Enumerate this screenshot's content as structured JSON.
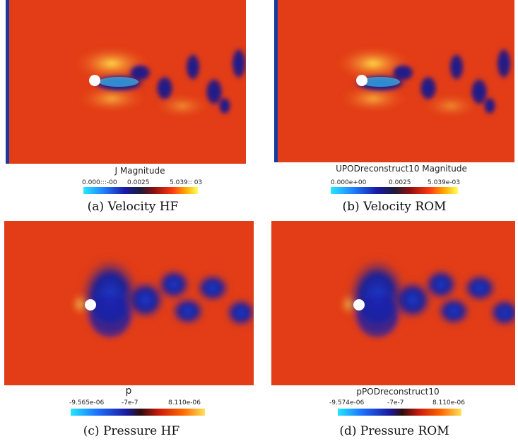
{
  "panels": [
    {
      "id": "a",
      "kind": "velocity",
      "colorbar_title": "J Magnitude",
      "ticks": [
        "0.000:::-00",
        "0.0025",
        "5.039:: 03"
      ],
      "caption": "(a) Velocity HF"
    },
    {
      "id": "b",
      "kind": "velocity",
      "colorbar_title": "UPODreconstruct10 Magnitude",
      "ticks": [
        "0.000e+00",
        "0.0025",
        "5.039e-03"
      ],
      "caption": "(b) Velocity ROM"
    },
    {
      "id": "c",
      "kind": "pressure",
      "colorbar_title": "p",
      "ticks": [
        "-9.565e-06",
        "-7e-7",
        "8.110e-06"
      ],
      "caption": "(c) Pressure HF"
    },
    {
      "id": "d",
      "kind": "pressure",
      "colorbar_title": "pPODreconstruct10",
      "ticks": [
        "-9.574e-06",
        "-7e-7",
        "8.110e-06"
      ],
      "caption": "(d) Pressure ROM"
    }
  ],
  "colors": {
    "background_field": "#e8401a",
    "low": "#1a1aa8",
    "high": "#ffd000",
    "cylinder": "#ffffff"
  }
}
